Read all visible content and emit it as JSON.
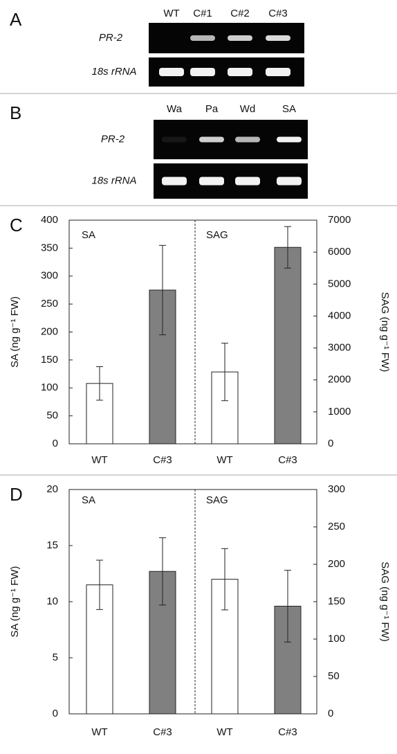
{
  "gels": [
    {
      "label": "A",
      "columns": [
        "WT",
        "C#1",
        "C#2",
        "C#3"
      ],
      "rows": [
        "PR-2",
        "18s rRNA"
      ]
    },
    {
      "label": "B",
      "columns": [
        "Wa",
        "Pa",
        "Wd",
        "SA"
      ],
      "rows": [
        "PR-2",
        "18s rRNA"
      ]
    }
  ],
  "chart_data": [
    {
      "type": "bar",
      "panel": "C",
      "categories": [
        "WT",
        "C#3",
        "WT",
        "C#3"
      ],
      "bar_colors": [
        "#ffffff",
        "#808080",
        "#ffffff",
        "#808080"
      ],
      "ylabel": "SA (ng g⁻¹ FW)",
      "y2label": "SAG (ng g⁻¹ FW)",
      "ylim": [
        0,
        400
      ],
      "yticks": [
        0,
        50,
        100,
        150,
        200,
        250,
        300,
        350,
        400
      ],
      "y2lim": [
        0,
        7000
      ],
      "y2ticks": [
        0,
        1000,
        2000,
        3000,
        4000,
        5000,
        6000,
        7000
      ],
      "grid": false,
      "series": [
        {
          "name": "SA",
          "axis": "y",
          "values": [
            108,
            275,
            null,
            null
          ],
          "errors": [
            30,
            80,
            null,
            null
          ]
        },
        {
          "name": "SAG",
          "axis": "y2",
          "values": [
            null,
            null,
            2250,
            6150
          ],
          "errors": [
            null,
            null,
            900,
            650
          ]
        }
      ]
    },
    {
      "type": "bar",
      "panel": "D",
      "categories": [
        "WT",
        "C#3",
        "WT",
        "C#3"
      ],
      "bar_colors": [
        "#ffffff",
        "#808080",
        "#ffffff",
        "#808080"
      ],
      "ylabel": "SA (ng g⁻¹ FW)",
      "y2label": "SAG (ng g⁻¹ FW)",
      "ylim": [
        0,
        20
      ],
      "yticks": [
        0,
        5,
        10,
        15,
        20
      ],
      "y2lim": [
        0,
        300
      ],
      "y2ticks": [
        0,
        50,
        100,
        150,
        200,
        250,
        300
      ],
      "grid": false,
      "series": [
        {
          "name": "SA",
          "axis": "y",
          "values": [
            11.5,
            12.7,
            null,
            null
          ],
          "errors": [
            2.2,
            3.0,
            null,
            null
          ]
        },
        {
          "name": "SAG",
          "axis": "y2",
          "values": [
            null,
            null,
            180,
            144
          ],
          "errors": [
            null,
            null,
            41,
            48
          ]
        }
      ]
    }
  ]
}
